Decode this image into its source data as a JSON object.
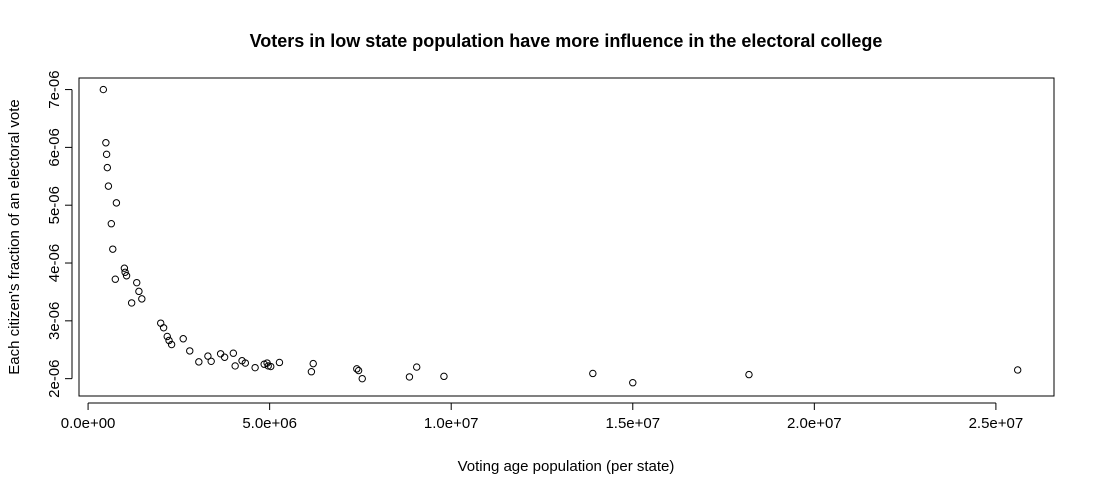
{
  "chart_data": {
    "type": "scatter",
    "title": "Voters in low state population have more influence in the electoral college",
    "xlabel": "Voting age population (per state)",
    "ylabel": "Each citizen's fraction of an electoral vote",
    "xlim": [
      -250000,
      26600000
    ],
    "ylim": [
      1700000,
      7200000
    ],
    "y_scale_note": "y values multiplied by 1e-12",
    "x_ticks": [
      0,
      5000000,
      10000000,
      15000000,
      20000000,
      25000000
    ],
    "x_tick_labels": [
      "0.0e+00",
      "5.0e+06",
      "1.0e+07",
      "1.5e+07",
      "2.0e+07",
      "2.5e+07"
    ],
    "y_ticks": [
      2000000,
      3000000,
      4000000,
      5000000,
      6000000,
      7000000
    ],
    "y_tick_labels": [
      "2e-06",
      "3e-06",
      "4e-06",
      "5e-06",
      "6e-06",
      "7e-06"
    ],
    "grid": false,
    "legend": "none",
    "marker": "open-circle",
    "x": [
      420000,
      490000,
      510000,
      530000,
      560000,
      640000,
      680000,
      750000,
      780000,
      1000000,
      1020000,
      1060000,
      1200000,
      1340000,
      1400000,
      1480000,
      2000000,
      2080000,
      2180000,
      2230000,
      2300000,
      2620000,
      2800000,
      3050000,
      3300000,
      3390000,
      3650000,
      3760000,
      4000000,
      4050000,
      4240000,
      4330000,
      4600000,
      4850000,
      4930000,
      4960000,
      5030000,
      5270000,
      6150000,
      6200000,
      7400000,
      7450000,
      7550000,
      8850000,
      9050000,
      9800000,
      13900000,
      15000000,
      18200000,
      25600000
    ],
    "y": [
      7000000,
      6080000,
      5880000,
      5650000,
      5330000,
      4680000,
      4240000,
      3720000,
      5040000,
      3910000,
      3840000,
      3780000,
      3310000,
      3660000,
      3510000,
      3380000,
      2960000,
      2880000,
      2730000,
      2660000,
      2590000,
      2690000,
      2480000,
      2290000,
      2390000,
      2300000,
      2430000,
      2370000,
      2440000,
      2220000,
      2310000,
      2270000,
      2190000,
      2250000,
      2270000,
      2220000,
      2210000,
      2280000,
      2120000,
      2260000,
      2170000,
      2140000,
      2000000,
      2030000,
      2200000,
      2040000,
      2090000,
      1930000,
      2070000,
      2150000
    ]
  }
}
